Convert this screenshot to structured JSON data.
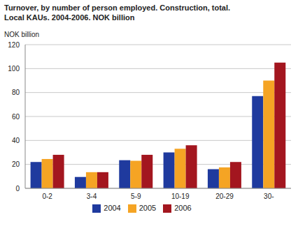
{
  "chart_data": {
    "type": "bar",
    "title": "Turnover, by number of person employed. Construction, total.\nLocal KAUs. 2004-2006. NOK billion",
    "y_label": "NOK billion",
    "categories": [
      "0-2",
      "3-4",
      "5-9",
      "10-19",
      "20-29",
      "30-"
    ],
    "series": [
      {
        "name": "2004",
        "color": "#1f3a9e",
        "values": [
          22,
          9.5,
          23.5,
          30,
          16,
          77
        ]
      },
      {
        "name": "2005",
        "color": "#f5a424",
        "values": [
          24.5,
          13.5,
          23,
          33,
          17.5,
          90
        ]
      },
      {
        "name": "2006",
        "color": "#a3161f",
        "values": [
          28,
          13.5,
          28,
          36,
          22,
          105
        ]
      }
    ],
    "ylim": [
      0,
      120
    ],
    "yticks": [
      0,
      20,
      40,
      60,
      80,
      100,
      120
    ],
    "grid": true,
    "legend": "bottom"
  }
}
